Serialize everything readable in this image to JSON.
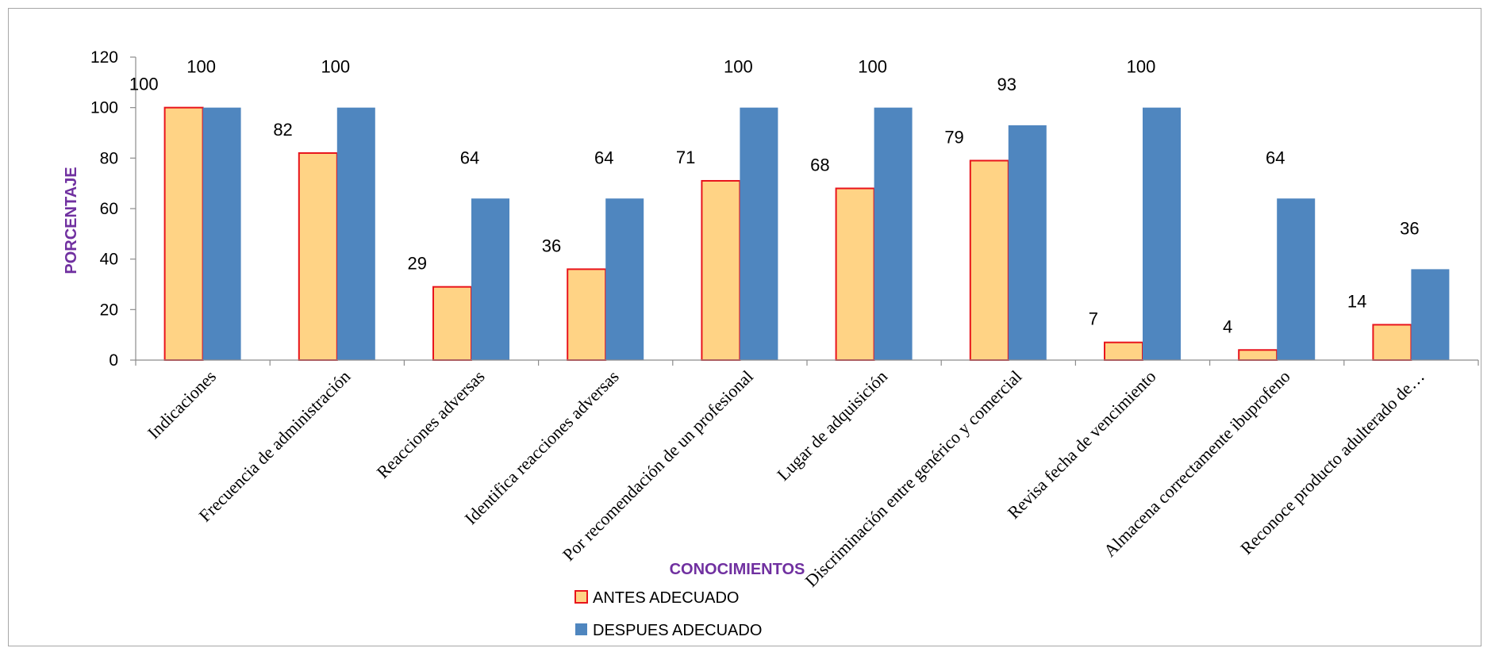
{
  "chart_data": {
    "type": "bar",
    "categories": [
      "Indicaciones",
      "Frecuencia de administración",
      "Reacciones adversas",
      "Identifica reacciones adversas",
      "Por recomendación de un profesional",
      "Lugar de adquisición",
      "Discriminación entre genérico y comercial",
      "Revisa fecha de vencimiento",
      "Almacena correctamente ibuprofeno",
      "Reconoce producto adulterado de…"
    ],
    "series": [
      {
        "name": "ANTES ADECUADO",
        "values": [
          100,
          82,
          29,
          36,
          71,
          68,
          79,
          7,
          4,
          14
        ],
        "color": "#ffd385",
        "stroke": "#e8141c"
      },
      {
        "name": "DESPUES ADECUADO",
        "values": [
          100,
          100,
          64,
          64,
          100,
          100,
          93,
          100,
          64,
          36
        ],
        "color": "#4f86bf"
      }
    ],
    "ylabel": "PORCENTAJE",
    "xlabel": "CONOCIMIENTOS",
    "ylim": [
      0,
      120
    ],
    "yticks": [
      0,
      20,
      40,
      60,
      80,
      100,
      120
    ],
    "grid": false,
    "legend": "bottom"
  }
}
